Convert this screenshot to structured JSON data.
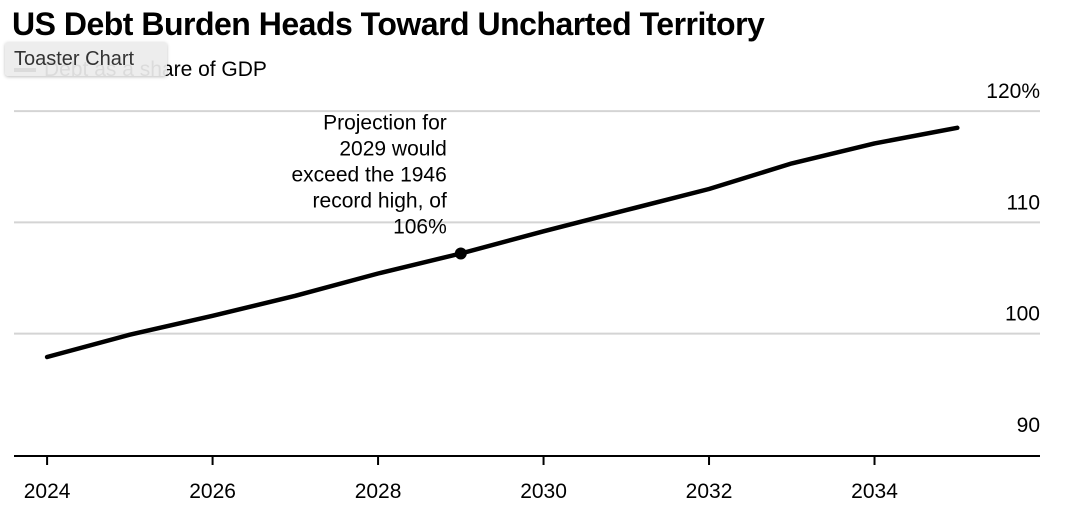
{
  "chart_data": {
    "type": "line",
    "title": "US Debt Burden Heads Toward Uncharted Territory",
    "series": [
      {
        "name": "Debt as a share of GDP",
        "x": [
          2024,
          2025,
          2026,
          2027,
          2028,
          2029,
          2030,
          2031,
          2032,
          2033,
          2034,
          2035
        ],
        "values": [
          97.9,
          99.9,
          101.6,
          103.4,
          105.4,
          107.2,
          109.2,
          111.1,
          113.0,
          115.3,
          117.1,
          118.5
        ],
        "color": "#000000"
      }
    ],
    "xlim": [
      2023.6,
      2036.0
    ],
    "ylim": [
      89,
      121
    ],
    "x_ticks": [
      2024,
      2026,
      2028,
      2030,
      2032,
      2034
    ],
    "x_tick_labels": [
      "2024",
      "2026",
      "2028",
      "2030",
      "2032",
      "2034"
    ],
    "y_ticks": [
      90,
      100,
      110,
      120
    ],
    "y_tick_labels": [
      "90",
      "100",
      "110",
      "120%"
    ],
    "grid": true,
    "legend_position": "top-left",
    "annotation": {
      "x": 2029,
      "y": 107.2,
      "lines": [
        "Projection for",
        "2029 would",
        "exceed the 1946",
        "record high, of",
        "106%"
      ]
    }
  },
  "overlay": {
    "toaster_label": "Toaster Chart"
  }
}
